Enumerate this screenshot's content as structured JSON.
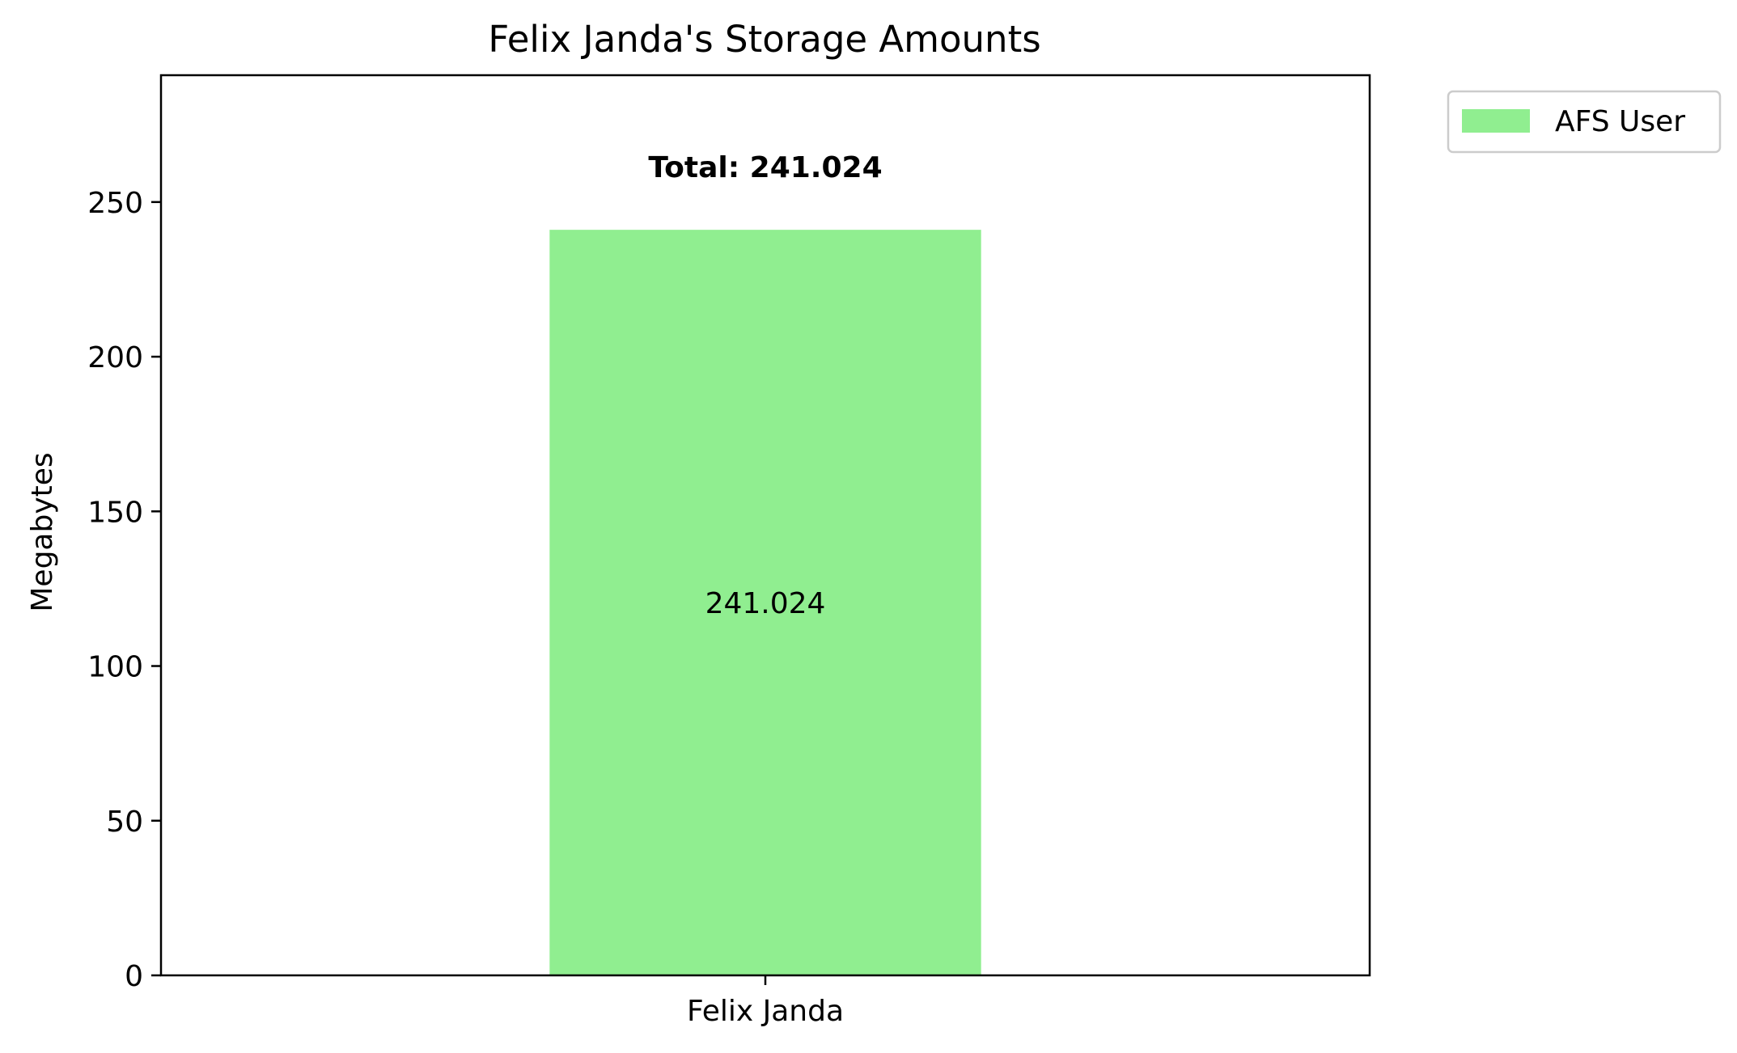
{
  "chart_data": {
    "type": "bar",
    "title": "Felix Janda's Storage Amounts",
    "xlabel": "",
    "ylabel": "Megabytes",
    "categories": [
      "Felix Janda"
    ],
    "series": [
      {
        "name": "AFS User",
        "values": [
          241.024
        ],
        "value_labels": [
          "241.024"
        ],
        "color": "#90ee90"
      }
    ],
    "totals": [
      "Total: 241.024"
    ],
    "ylim": [
      0,
      291
    ],
    "yticks": [
      0,
      50,
      100,
      150,
      200,
      250
    ],
    "grid": false,
    "legend": {
      "position": "outside-top-right",
      "entries": [
        "AFS User"
      ]
    }
  }
}
